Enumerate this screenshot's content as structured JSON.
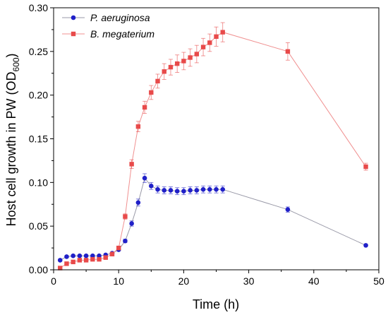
{
  "chart_data": {
    "type": "line",
    "xlabel": "Time (h)",
    "ylabel": "Host cell growth in PW (OD",
    "ylabel_subscript": "600",
    "ylabel_close": ")",
    "xlim": [
      0,
      50
    ],
    "ylim": [
      0,
      0.3
    ],
    "xticks": [
      0,
      10,
      20,
      30,
      40,
      50
    ],
    "yticks": [
      0.0,
      0.05,
      0.1,
      0.15,
      0.2,
      0.25,
      0.3
    ],
    "xtick_labels": [
      "0",
      "10",
      "20",
      "30",
      "40",
      "50"
    ],
    "ytick_labels": [
      "0.00",
      "0.05",
      "0.10",
      "0.15",
      "0.20",
      "0.25",
      "0.30"
    ],
    "grid": false,
    "legend_position": "top-left",
    "series": [
      {
        "name": "P. aeruginosa",
        "color": "#2020c8",
        "line_color": "#9a9aa8",
        "marker": "circle",
        "x": [
          1,
          2,
          3,
          4,
          5,
          6,
          7,
          8,
          9,
          10,
          11,
          12,
          13,
          14,
          15,
          16,
          17,
          18,
          19,
          20,
          21,
          22,
          23,
          24,
          25,
          26,
          36,
          48
        ],
        "y": [
          0.011,
          0.015,
          0.016,
          0.016,
          0.016,
          0.016,
          0.016,
          0.017,
          0.019,
          0.023,
          0.033,
          0.053,
          0.077,
          0.105,
          0.096,
          0.092,
          0.091,
          0.091,
          0.09,
          0.09,
          0.091,
          0.091,
          0.092,
          0.092,
          0.092,
          0.092,
          0.069,
          0.028
        ],
        "err": [
          0.001,
          0.001,
          0.001,
          0.001,
          0.001,
          0.001,
          0.001,
          0.001,
          0.001,
          0.001,
          0.002,
          0.003,
          0.004,
          0.005,
          0.004,
          0.004,
          0.004,
          0.004,
          0.004,
          0.004,
          0.004,
          0.004,
          0.004,
          0.004,
          0.004,
          0.004,
          0.003,
          0.001
        ]
      },
      {
        "name": "B. megaterium",
        "color": "#e84a4a",
        "line_color": "#f09090",
        "marker": "square",
        "x": [
          1,
          2,
          3,
          4,
          5,
          6,
          7,
          8,
          9,
          10,
          11,
          12,
          13,
          14,
          15,
          16,
          17,
          18,
          19,
          20,
          21,
          22,
          23,
          24,
          25,
          26,
          36,
          48
        ],
        "y": [
          0.002,
          0.007,
          0.009,
          0.011,
          0.011,
          0.012,
          0.012,
          0.014,
          0.018,
          0.025,
          0.061,
          0.121,
          0.164,
          0.186,
          0.203,
          0.216,
          0.227,
          0.232,
          0.236,
          0.239,
          0.243,
          0.247,
          0.255,
          0.26,
          0.267,
          0.272,
          0.25,
          0.118
        ],
        "err": [
          0.001,
          0.001,
          0.001,
          0.001,
          0.001,
          0.001,
          0.001,
          0.001,
          0.002,
          0.002,
          0.003,
          0.005,
          0.006,
          0.007,
          0.008,
          0.008,
          0.009,
          0.009,
          0.01,
          0.01,
          0.01,
          0.01,
          0.01,
          0.01,
          0.011,
          0.011,
          0.01,
          0.004
        ]
      }
    ]
  }
}
